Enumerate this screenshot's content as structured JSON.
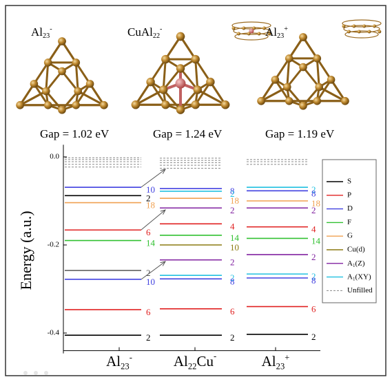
{
  "clusters": [
    {
      "label": {
        "base": "Al",
        "sub": "23",
        "sup": "-"
      },
      "gap": "Gap = 1.02 eV"
    },
    {
      "label": {
        "base": "CuAl",
        "sub": "22",
        "sup": "-"
      },
      "gap": "Gap = 1.24 eV"
    },
    {
      "label": {
        "base": "Al",
        "sub": "23",
        "sup": "+"
      },
      "gap": "Gap = 1.19 eV"
    }
  ],
  "chart_data": {
    "type": "energy_levels",
    "y_label": "Energy (a.u.)",
    "ylim": [
      -0.44,
      0.015
    ],
    "yticks": [
      {
        "value": 0,
        "label": "0.0"
      },
      -0.2,
      -0.4
    ],
    "orbitals": [
      {
        "name": "S",
        "color": "#000000"
      },
      {
        "name": "P",
        "color": "#e02020"
      },
      {
        "name": "D",
        "color": "#4040e0"
      },
      {
        "name": "F",
        "color": "#30c030"
      },
      {
        "name": "G",
        "color": "#f0a050"
      },
      {
        "name": "Cu(d)",
        "color": "#8b7a10"
      },
      {
        "name": {
          "base": "A",
          "sub": "1",
          "tail": "(Z)"
        },
        "color": "#8020a0"
      },
      {
        "name": {
          "base": "A",
          "sub": "1",
          "tail": "(XY)"
        },
        "color": "#20c0e0"
      },
      {
        "name": "Unfilled",
        "color": "#888888",
        "dashed": true
      }
    ],
    "columns": [
      {
        "label": {
          "base": "Al",
          "sub": "23",
          "sup": "-"
        },
        "levels": [
          {
            "energy": -0.002,
            "color": "#888888",
            "dashed": true,
            "label": null
          },
          {
            "energy": -0.006,
            "color": "#888888",
            "dashed": true,
            "label": null
          },
          {
            "energy": -0.011,
            "color": "#888888",
            "dashed": true,
            "label": null
          },
          {
            "energy": -0.017,
            "color": "#888888",
            "dashed": true,
            "label": null
          },
          {
            "energy": -0.023,
            "color": "#888888",
            "dashed": true,
            "label": null
          },
          {
            "energy": -0.069,
            "color": "#4040e0",
            "label": "10"
          },
          {
            "energy": -0.088,
            "color": "#000000",
            "label": "2"
          },
          {
            "energy": -0.104,
            "color": "#f0a050",
            "label": "18"
          },
          {
            "energy": -0.166,
            "color": "#e02020",
            "label": "6"
          },
          {
            "energy": -0.19,
            "color": "#30c030",
            "label": "14"
          },
          {
            "energy": -0.258,
            "color": "#555555",
            "label": "2"
          },
          {
            "energy": -0.278,
            "color": "#4040e0",
            "label": "10"
          },
          {
            "energy": -0.347,
            "color": "#e02020",
            "label": "6"
          },
          {
            "energy": -0.405,
            "color": "#000000",
            "label": "2"
          }
        ]
      },
      {
        "label": {
          "base": "Al",
          "sub": "22",
          "mid": "Cu",
          "sup": "-"
        },
        "levels": [
          {
            "energy": -0.003,
            "color": "#888888",
            "dashed": true,
            "label": null
          },
          {
            "energy": -0.008,
            "color": "#888888",
            "dashed": true,
            "label": null
          },
          {
            "energy": -0.013,
            "color": "#888888",
            "dashed": true,
            "label": null
          },
          {
            "energy": -0.019,
            "color": "#888888",
            "dashed": true,
            "label": null
          },
          {
            "energy": -0.026,
            "color": "#888888",
            "dashed": true,
            "label": null
          },
          {
            "energy": -0.072,
            "color": "#4040e0",
            "label": "8"
          },
          {
            "energy": -0.078,
            "color": "#20c0e0",
            "label": "2"
          },
          {
            "energy": -0.094,
            "color": "#f0a050",
            "label": "18"
          },
          {
            "energy": -0.116,
            "color": "#8020a0",
            "label": "2"
          },
          {
            "energy": -0.152,
            "color": "#e02020",
            "label": "4"
          },
          {
            "energy": -0.178,
            "color": "#30c030",
            "label": "14"
          },
          {
            "energy": -0.2,
            "color": "#8b7a10",
            "label": "10"
          },
          {
            "energy": -0.234,
            "color": "#8020a0",
            "label": "2"
          },
          {
            "energy": -0.269,
            "color": "#20c0e0",
            "label": "2"
          },
          {
            "energy": -0.277,
            "color": "#4040e0",
            "label": "8"
          },
          {
            "energy": -0.345,
            "color": "#e02020",
            "label": "6"
          },
          {
            "energy": -0.405,
            "color": "#000000",
            "label": "2"
          }
        ]
      },
      {
        "label": {
          "base": "Al",
          "sub": "23",
          "sup": "+"
        },
        "levels": [
          {
            "energy": -0.006,
            "color": "#888888",
            "dashed": true,
            "label": null
          },
          {
            "energy": -0.011,
            "color": "#888888",
            "dashed": true,
            "label": null
          },
          {
            "energy": -0.017,
            "color": "#888888",
            "dashed": true,
            "label": null
          },
          {
            "energy": -0.069,
            "color": "#20c0e0",
            "label": "2"
          },
          {
            "energy": -0.077,
            "color": "#4040e0",
            "label": "8"
          },
          {
            "energy": -0.1,
            "color": "#f0a050",
            "label": "18"
          },
          {
            "energy": -0.116,
            "color": "#8020a0",
            "label": "2"
          },
          {
            "energy": -0.159,
            "color": "#e02020",
            "label": "4"
          },
          {
            "energy": -0.185,
            "color": "#30c030",
            "label": "14"
          },
          {
            "energy": -0.222,
            "color": "#8020a0",
            "label": "2"
          },
          {
            "energy": -0.266,
            "color": "#20c0e0",
            "label": "2"
          },
          {
            "energy": -0.275,
            "color": "#4040e0",
            "label": "8"
          },
          {
            "energy": -0.34,
            "color": "#e02020",
            "label": "6"
          },
          {
            "energy": -0.403,
            "color": "#000000",
            "label": "2"
          }
        ]
      }
    ]
  }
}
